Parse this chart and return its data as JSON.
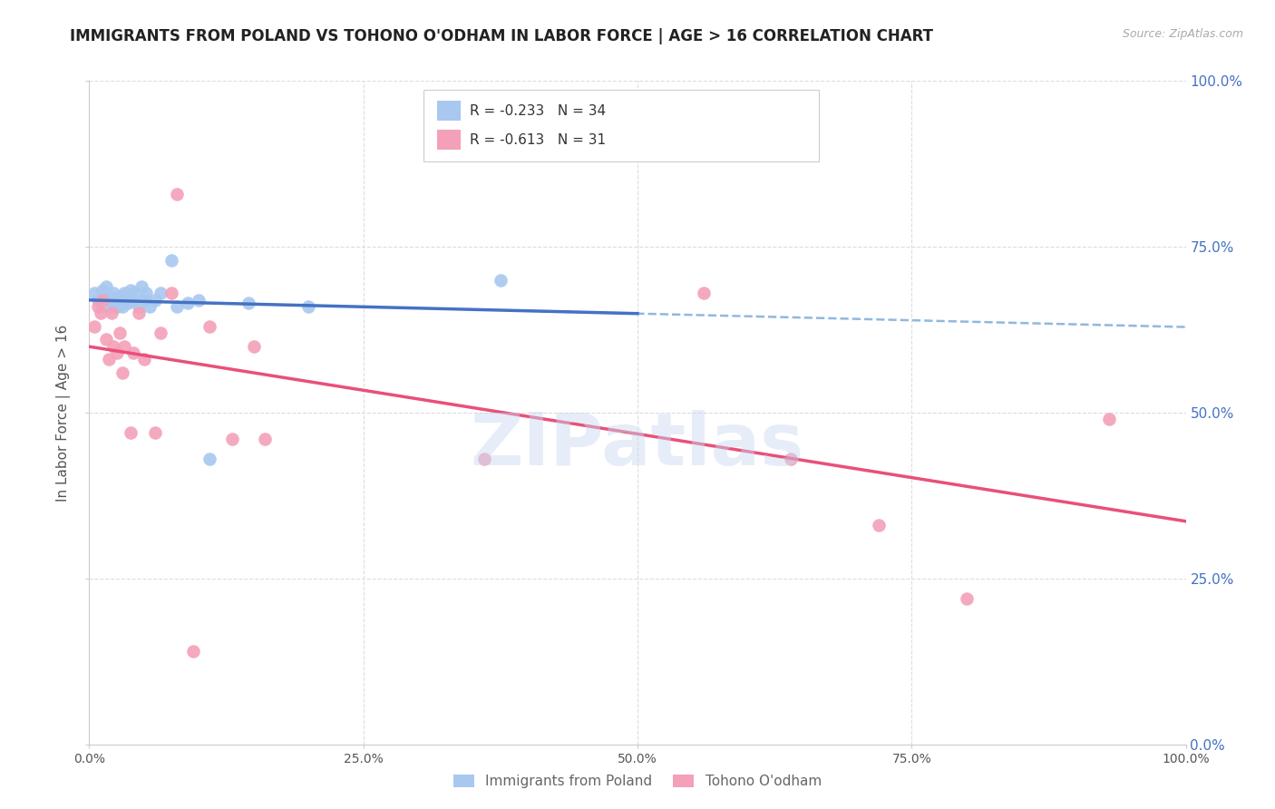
{
  "title": "IMMIGRANTS FROM POLAND VS TOHONO O'ODHAM IN LABOR FORCE | AGE > 16 CORRELATION CHART",
  "source": "Source: ZipAtlas.com",
  "ylabel": "In Labor Force | Age > 16",
  "xlim": [
    0.0,
    1.0
  ],
  "ylim": [
    0.0,
    1.0
  ],
  "xticks": [
    0.0,
    0.25,
    0.5,
    0.75,
    1.0
  ],
  "yticks": [
    0.0,
    0.25,
    0.5,
    0.75,
    1.0
  ],
  "xtick_labels": [
    "0.0%",
    "25.0%",
    "50.0%",
    "75.0%",
    "100.0%"
  ],
  "ytick_labels": [
    "0.0%",
    "25.0%",
    "50.0%",
    "75.0%",
    "100.0%"
  ],
  "poland_R": -0.233,
  "poland_N": 34,
  "tohono_R": -0.613,
  "tohono_N": 31,
  "poland_color": "#a8c8f0",
  "tohono_color": "#f4a0b8",
  "poland_line_color": "#4472c4",
  "tohono_line_color": "#e8507a",
  "dashed_line_color": "#90b8e0",
  "watermark": "ZIPatlas",
  "legend_label_poland": "Immigrants from Poland",
  "legend_label_tohono": "Tohono O'odham",
  "poland_x": [
    0.005,
    0.008,
    0.012,
    0.015,
    0.018,
    0.018,
    0.02,
    0.022,
    0.022,
    0.025,
    0.025,
    0.028,
    0.03,
    0.03,
    0.032,
    0.035,
    0.038,
    0.04,
    0.042,
    0.045,
    0.048,
    0.05,
    0.052,
    0.055,
    0.06,
    0.065,
    0.075,
    0.08,
    0.09,
    0.1,
    0.11,
    0.145,
    0.2,
    0.375
  ],
  "poland_y": [
    0.68,
    0.67,
    0.685,
    0.69,
    0.66,
    0.675,
    0.665,
    0.67,
    0.68,
    0.66,
    0.67,
    0.675,
    0.66,
    0.675,
    0.68,
    0.665,
    0.685,
    0.67,
    0.68,
    0.66,
    0.69,
    0.67,
    0.68,
    0.66,
    0.67,
    0.68,
    0.73,
    0.66,
    0.665,
    0.67,
    0.43,
    0.665,
    0.66,
    0.7
  ],
  "tohono_x": [
    0.005,
    0.008,
    0.01,
    0.012,
    0.015,
    0.018,
    0.02,
    0.022,
    0.025,
    0.028,
    0.03,
    0.032,
    0.038,
    0.04,
    0.045,
    0.05,
    0.06,
    0.065,
    0.075,
    0.08,
    0.095,
    0.11,
    0.13,
    0.15,
    0.16,
    0.36,
    0.56,
    0.64,
    0.72,
    0.8,
    0.93
  ],
  "tohono_y": [
    0.63,
    0.66,
    0.65,
    0.67,
    0.61,
    0.58,
    0.65,
    0.6,
    0.59,
    0.62,
    0.56,
    0.6,
    0.47,
    0.59,
    0.65,
    0.58,
    0.47,
    0.62,
    0.68,
    0.83,
    0.14,
    0.63,
    0.46,
    0.6,
    0.46,
    0.43,
    0.68,
    0.43,
    0.33,
    0.22,
    0.49
  ],
  "grid_color": "#dddddd",
  "background_color": "#ffffff",
  "right_ytick_color": "#4472c4",
  "title_fontsize": 12,
  "axis_label_fontsize": 11,
  "tick_fontsize": 10,
  "legend_fontsize": 11
}
